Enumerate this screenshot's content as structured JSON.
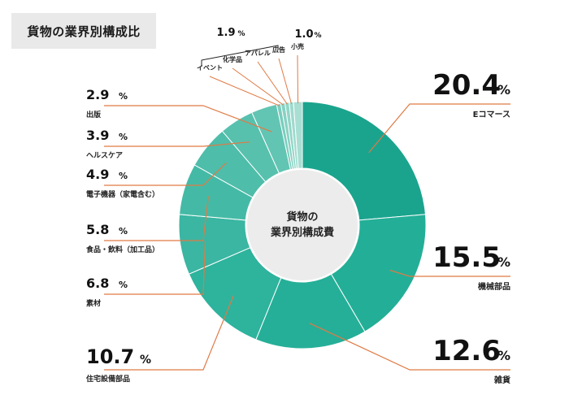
{
  "chart_data": {
    "type": "pie",
    "style": "donut",
    "title": "貨物の業界別構成比",
    "center_label": [
      "貨物の",
      "業界別構成費"
    ],
    "unit": "%",
    "slices": [
      {
        "label": "Eコマース",
        "value": 20.4,
        "color": "#1aa48e"
      },
      {
        "label": "機械部品",
        "value": 15.5,
        "color": "#23af97"
      },
      {
        "label": "雑貨",
        "value": 12.6,
        "color": "#25af98"
      },
      {
        "label": "住宅設備部品",
        "value": 10.7,
        "color": "#2eb39d"
      },
      {
        "label": "素材",
        "value": 6.8,
        "color": "#3ab6a2"
      },
      {
        "label": "食品・飲料（加工品）",
        "value": 5.8,
        "color": "#44baa6"
      },
      {
        "label": "電子機器（家電含む）",
        "value": 4.9,
        "color": "#4ebdaa"
      },
      {
        "label": "ヘルスケア",
        "value": 3.9,
        "color": "#57c1ae"
      },
      {
        "label": "出版",
        "value": 2.9,
        "color": "#62c5b3"
      },
      {
        "label": "イベント",
        "value": null,
        "color": "#7acdbd"
      },
      {
        "label": "化学品",
        "value": null,
        "color": "#86d2c3"
      },
      {
        "label": "アパレル",
        "value": null,
        "color": "#92d6c8"
      },
      {
        "label": "広告",
        "value": null,
        "color": "#9edace"
      },
      {
        "label": "小売",
        "value": 1.0,
        "color": "#a9ded3"
      }
    ],
    "group_annotation": {
      "value": 1.9,
      "members": [
        "イベント",
        "化学品",
        "アパレル",
        "広告"
      ]
    },
    "accent_line_color": "#e07a45"
  }
}
